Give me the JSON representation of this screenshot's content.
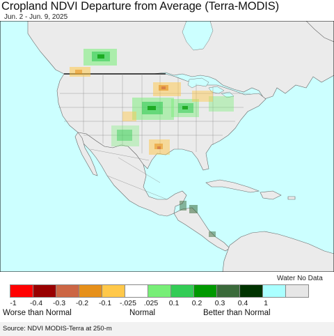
{
  "title": "Cropland NDVI Departure from Average (Terra-MODIS)",
  "subtitle": "Jun. 2 - Jun. 9, 2025",
  "legend": {
    "water_no_data_label": "Water No Data",
    "swatches": [
      {
        "color": "#ff0000",
        "name": "swatch-neg1"
      },
      {
        "color": "#990000",
        "name": "swatch-neg04"
      },
      {
        "color": "#cc6644",
        "name": "swatch-neg03"
      },
      {
        "color": "#e6901a",
        "name": "swatch-neg02"
      },
      {
        "color": "#ffc84a",
        "name": "swatch-neg01"
      },
      {
        "color": "#ffffff",
        "name": "swatch-normal"
      },
      {
        "color": "#77ee77",
        "name": "swatch-pos01"
      },
      {
        "color": "#33cc55",
        "name": "swatch-pos02"
      },
      {
        "color": "#009900",
        "name": "swatch-pos03"
      },
      {
        "color": "#3a6a3a",
        "name": "swatch-pos04"
      },
      {
        "color": "#003300",
        "name": "swatch-pos1"
      },
      {
        "color": "#aaffff",
        "name": "swatch-water"
      },
      {
        "color": "#e6e6e6",
        "name": "swatch-nodata"
      }
    ],
    "ticks": [
      "-1",
      "-0.4",
      "-0.3",
      "-0.2",
      "-0.1",
      "-.025",
      ".025",
      "0.1",
      "0.2",
      "0.3",
      "0.4",
      "1"
    ],
    "categories": {
      "worse": "Worse than Normal",
      "normal": "Normal",
      "better": "Better than Normal"
    }
  },
  "source": "Source: NDVI MODIS-Terra at 250-m",
  "colors": {
    "ocean": "#ccffff",
    "land": "#ebebeb",
    "outside_land": "#f0eef0",
    "border": "#555555"
  }
}
